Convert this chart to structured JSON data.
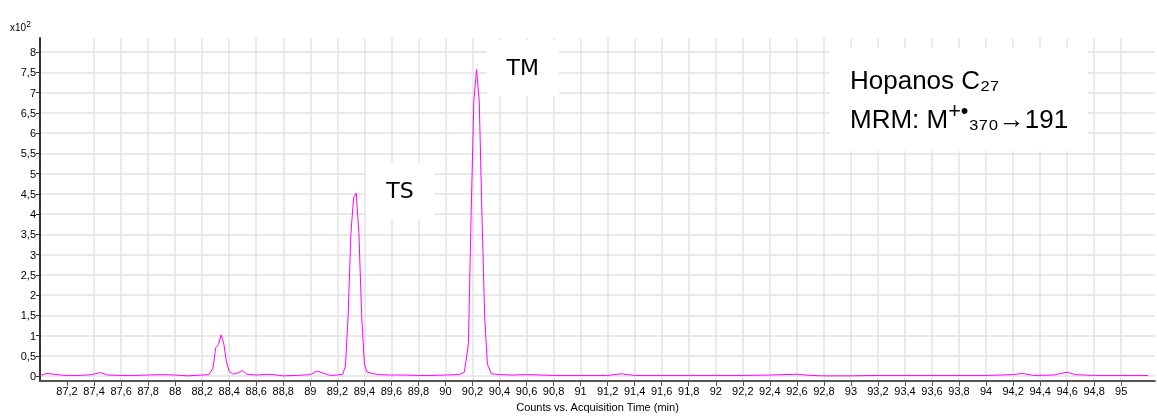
{
  "chart_data": {
    "type": "line",
    "xlabel": "Counts vs. Acquisition Time (min)",
    "annotations": [
      "x10$^{2}$",
      {
        "text": "TS",
        "x": 89.34,
        "y": 4.52
      },
      {
        "text": "TM",
        "x": 90.23,
        "y": 7.57
      },
      "Hopanos C₂₇",
      "MRM: M$^{+•}$₃₇₀→191"
    ],
    "x": [
      87.0,
      87.05,
      87.1,
      87.15,
      87.2,
      87.3,
      87.38,
      87.45,
      87.5,
      87.6,
      87.7,
      87.8,
      87.9,
      88.0,
      88.1,
      88.2,
      88.25,
      88.28,
      88.3,
      88.32,
      88.34,
      88.36,
      88.38,
      88.4,
      88.43,
      88.46,
      88.5,
      88.53,
      88.6,
      88.7,
      88.8,
      88.9,
      89.0,
      89.05,
      89.1,
      89.15,
      89.2,
      89.24,
      89.26,
      89.28,
      89.3,
      89.32,
      89.34,
      89.36,
      89.38,
      89.4,
      89.42,
      89.5,
      89.6,
      89.7,
      89.8,
      89.9,
      90.0,
      90.1,
      90.14,
      90.17,
      90.19,
      90.21,
      90.23,
      90.25,
      90.27,
      90.29,
      90.31,
      90.34,
      90.4,
      90.5,
      90.6,
      90.8,
      91.0,
      91.2,
      91.3,
      91.4,
      91.6,
      91.8,
      92.0,
      92.2,
      92.4,
      92.6,
      92.7,
      92.8,
      93.0,
      93.2,
      93.4,
      93.6,
      93.8,
      94.0,
      94.2,
      94.27,
      94.35,
      94.5,
      94.6,
      94.66,
      94.8,
      95.0,
      95.2
    ],
    "series": [
      {
        "color": "#ff00ff",
        "values": [
          0.02,
          0.07,
          0.05,
          0.03,
          0.02,
          0.02,
          0.04,
          0.09,
          0.03,
          0.02,
          0.02,
          0.03,
          0.04,
          0.03,
          0.01,
          0.03,
          0.04,
          0.2,
          0.7,
          0.78,
          1.02,
          0.8,
          0.35,
          0.12,
          0.05,
          0.08,
          0.14,
          0.05,
          0.03,
          0.05,
          0.01,
          0.02,
          0.04,
          0.13,
          0.07,
          0.02,
          0.03,
          0.05,
          0.25,
          1.5,
          3.5,
          4.4,
          4.52,
          3.5,
          1.5,
          0.3,
          0.1,
          0.04,
          0.03,
          0.03,
          0.02,
          0.02,
          0.03,
          0.04,
          0.1,
          0.8,
          4.0,
          6.8,
          7.57,
          6.8,
          4.0,
          1.5,
          0.3,
          0.06,
          0.04,
          0.03,
          0.04,
          0.02,
          0.02,
          0.02,
          0.06,
          0.02,
          0.02,
          0.02,
          0.02,
          0.02,
          0.03,
          0.05,
          0.02,
          0.01,
          0.01,
          0.02,
          0.02,
          0.02,
          0.02,
          0.02,
          0.04,
          0.07,
          0.02,
          0.03,
          0.1,
          0.04,
          0.02,
          0.02,
          0.02
        ]
      }
    ],
    "xlim": [
      87.0,
      95.25
    ],
    "xticks": [
      {
        "value": 87.2,
        "label": "87,2"
      },
      {
        "value": 87.4,
        "label": "87,4"
      },
      {
        "value": 87.6,
        "label": "87,6"
      },
      {
        "value": 87.8,
        "label": "87,8"
      },
      88,
      {
        "value": 88.2,
        "label": "88,2"
      },
      {
        "value": 88.4,
        "label": "88,4"
      },
      {
        "value": 88.6,
        "label": "88,6"
      },
      {
        "value": 88.8,
        "label": "88,8"
      },
      89,
      {
        "value": 89.2,
        "label": "89,2"
      },
      {
        "value": 89.4,
        "label": "89,4"
      },
      {
        "value": 89.6,
        "label": "89,6"
      },
      {
        "value": 89.8,
        "label": "89,8"
      },
      90,
      {
        "value": 90.2,
        "label": "90,2"
      },
      {
        "value": 90.4,
        "label": "90,4"
      },
      {
        "value": 90.6,
        "label": "90,6"
      },
      {
        "value": 90.8,
        "label": "90,8"
      },
      91,
      {
        "value": 91.2,
        "label": "91,2"
      },
      {
        "value": 91.4,
        "label": "91,4"
      },
      {
        "value": 91.6,
        "label": "91,6"
      },
      {
        "value": 91.8,
        "label": "91,8"
      },
      92,
      {
        "value": 92.2,
        "label": "92,2"
      },
      {
        "value": 92.4,
        "label": "92,4"
      },
      {
        "value": 92.6,
        "label": "92,6"
      },
      {
        "value": 92.8,
        "label": "92,8"
      },
      93,
      {
        "value": 93.2,
        "label": "93,2"
      },
      {
        "value": 93.4,
        "label": "93,4"
      },
      {
        "value": 93.6,
        "label": "93,6"
      },
      {
        "value": 93.8,
        "label": "93,8"
      },
      94,
      {
        "value": 94.2,
        "label": "94,2"
      },
      {
        "value": 94.4,
        "label": "94,4"
      },
      {
        "value": 94.6,
        "label": "94,6"
      },
      {
        "value": 94.8,
        "label": "94,8"
      },
      95
    ],
    "ylim": [
      -0.12,
      8.35
    ],
    "yticks": [
      0,
      {
        "value": 0.5,
        "label": "0,5"
      },
      1,
      {
        "value": 1.5,
        "label": "1,5"
      },
      2,
      {
        "value": 2.5,
        "label": "2,5"
      },
      3,
      {
        "value": 3.5,
        "label": "3,5"
      },
      4,
      {
        "value": 4.5,
        "label": "4,5"
      },
      5,
      {
        "value": 5.5,
        "label": "5,5"
      },
      6,
      {
        "value": 6.5,
        "label": "6,5"
      },
      7,
      {
        "value": 7.5,
        "label": "7,5"
      },
      8
    ],
    "grid": true,
    "marker": "none",
    "line_style": "solid"
  }
}
